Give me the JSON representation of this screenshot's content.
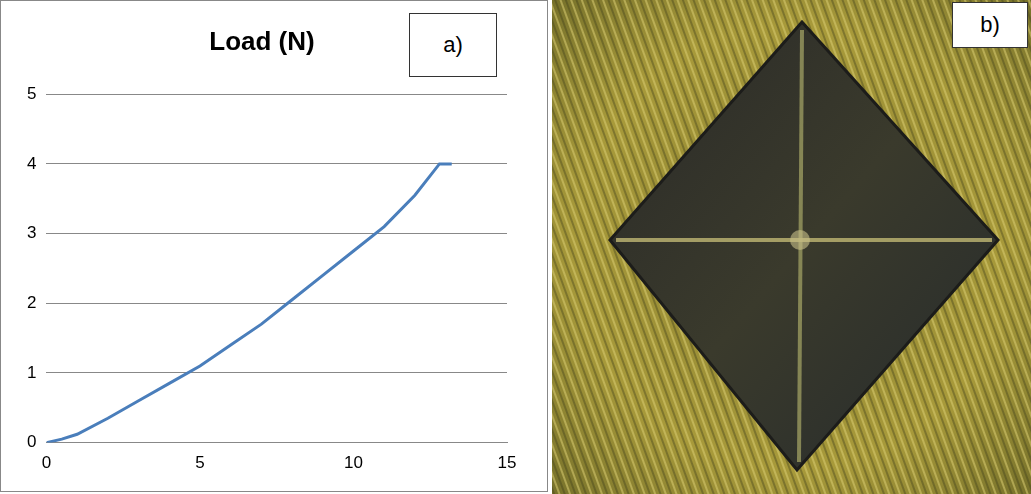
{
  "chart_data": {
    "type": "line",
    "title": "Load (N)",
    "annotations": [
      "a)"
    ],
    "x": [
      0,
      0.5,
      1,
      2,
      3,
      4,
      5,
      6,
      7,
      8,
      9,
      10,
      11,
      12,
      12.8,
      13.2
    ],
    "values": [
      0,
      0.05,
      0.12,
      0.35,
      0.6,
      0.85,
      1.1,
      1.4,
      1.7,
      2.05,
      2.4,
      2.75,
      3.1,
      3.55,
      4.0,
      4.0
    ],
    "color": "#4a7ebb",
    "xlim": [
      0,
      15
    ],
    "xticks": [
      0,
      5,
      10,
      15
    ],
    "ylim": [
      0,
      5
    ],
    "yticks": [
      0,
      1,
      2,
      3,
      4,
      5
    ],
    "grid": true
  },
  "photo": {
    "label": "b)"
  }
}
